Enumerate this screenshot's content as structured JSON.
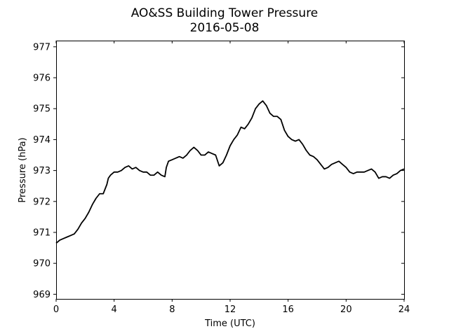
{
  "chart_data": {
    "type": "line",
    "title": "AO&SS Building Tower Pressure",
    "subtitle": "2016-05-08",
    "xlabel": "Time (UTC)",
    "ylabel": "Pressure (hPa)",
    "xlim": [
      0,
      24
    ],
    "ylim": [
      968.85,
      977.2
    ],
    "xticks": [
      0,
      4,
      8,
      12,
      16,
      20,
      24
    ],
    "yticks": [
      969,
      970,
      971,
      972,
      973,
      974,
      975,
      976,
      977
    ],
    "grid": false,
    "series": [
      {
        "color": "#000000",
        "x": [
          0,
          0.25,
          0.5,
          0.75,
          1.0,
          1.25,
          1.5,
          1.75,
          2.0,
          2.25,
          2.5,
          2.75,
          3.0,
          3.25,
          3.5,
          3.6,
          3.75,
          4.0,
          4.25,
          4.5,
          4.75,
          5.0,
          5.25,
          5.5,
          5.75,
          6.0,
          6.25,
          6.5,
          6.75,
          7.0,
          7.25,
          7.5,
          7.6,
          7.75,
          8.0,
          8.25,
          8.5,
          8.75,
          9.0,
          9.25,
          9.5,
          9.75,
          10.0,
          10.25,
          10.5,
          10.75,
          11.0,
          11.25,
          11.5,
          11.75,
          12.0,
          12.25,
          12.5,
          12.75,
          13.0,
          13.25,
          13.5,
          13.75,
          14.0,
          14.25,
          14.5,
          14.75,
          15.0,
          15.25,
          15.5,
          15.75,
          16.0,
          16.25,
          16.5,
          16.75,
          17.0,
          17.25,
          17.5,
          17.75,
          18.0,
          18.25,
          18.5,
          18.75,
          19.0,
          19.25,
          19.5,
          19.75,
          20.0,
          20.25,
          20.5,
          20.75,
          21.0,
          21.25,
          21.5,
          21.75,
          22.0,
          22.25,
          22.5,
          22.75,
          23.0,
          23.25,
          23.5,
          23.75,
          24.0
        ],
        "values": [
          970.65,
          970.75,
          970.8,
          970.85,
          970.9,
          970.95,
          971.1,
          971.3,
          971.45,
          971.65,
          971.9,
          972.1,
          972.25,
          972.25,
          972.55,
          972.75,
          972.85,
          972.95,
          972.95,
          973.0,
          973.1,
          973.15,
          973.05,
          973.1,
          973.0,
          972.95,
          972.95,
          972.85,
          972.85,
          972.95,
          972.85,
          972.8,
          973.1,
          973.3,
          973.35,
          973.4,
          973.45,
          973.4,
          973.5,
          973.65,
          973.75,
          973.65,
          973.5,
          973.5,
          973.6,
          973.55,
          973.5,
          973.15,
          973.25,
          973.5,
          973.8,
          974.0,
          974.15,
          974.4,
          974.35,
          974.5,
          974.7,
          975.0,
          975.15,
          975.25,
          975.1,
          974.85,
          974.75,
          974.75,
          974.65,
          974.3,
          974.1,
          974.0,
          973.95,
          974.0,
          973.85,
          973.65,
          973.5,
          973.45,
          973.35,
          973.2,
          973.05,
          973.1,
          973.2,
          973.25,
          973.3,
          973.2,
          973.1,
          972.95,
          972.9,
          972.95,
          972.95,
          972.95,
          973.0,
          973.05,
          972.95,
          972.75,
          972.8,
          972.8,
          972.75,
          972.85,
          972.9,
          973.0,
          973.05
        ]
      }
    ]
  }
}
